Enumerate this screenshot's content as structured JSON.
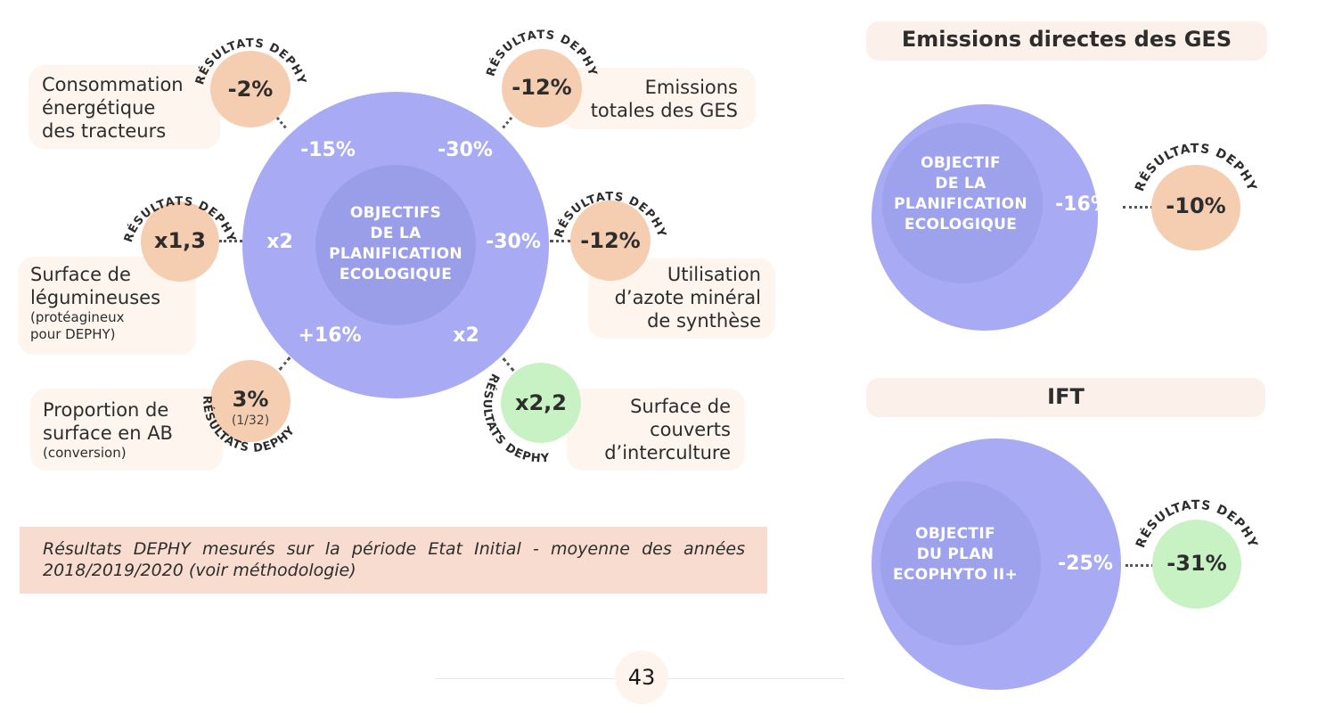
{
  "colors": {
    "objective_circle": "#a8abf4",
    "objective_inner": "#9a9ee8",
    "dephy_orange": "#f5cdb0",
    "dephy_green": "#c8f2c4",
    "label_box": "#fdf5ee",
    "note_bg": "#f7dccf"
  },
  "main_diagram": {
    "center_label": [
      "OBJECTIFS",
      "DE LA",
      "PLANIFICATION",
      "ECOLOGIQUE"
    ],
    "dephy_arc_label": "RÉSULTATS DEPHY",
    "indicators": {
      "tracteurs": {
        "objective": "-15%",
        "dephy": "-2%",
        "label": [
          "Consommation",
          "énergétique",
          "des tracteurs"
        ]
      },
      "ges": {
        "objective": "-30%",
        "dephy": "-12%",
        "label": [
          "Emissions",
          "totales des GES"
        ]
      },
      "legumineuses": {
        "objective": "x2",
        "dephy": "x1,3",
        "label": [
          "Surface de",
          "légumineuses"
        ],
        "sublabel": [
          "(protéagineux",
          "pour DEPHY)"
        ]
      },
      "azote": {
        "objective": "-30%",
        "dephy": "-12%",
        "label": [
          "Utilisation",
          "d’azote minéral",
          "de synthèse"
        ]
      },
      "ab": {
        "objective": "+16%",
        "dephy": "3%",
        "dephy_sub": "(1/32)",
        "label": [
          "Proportion de",
          "surface en AB"
        ],
        "sublabel": [
          "(conversion)"
        ]
      },
      "interculture": {
        "objective": "x2",
        "dephy": "x2,2",
        "label": [
          "Surface de",
          "couverts",
          "d’interculture"
        ]
      }
    }
  },
  "note": "Résultats DEPHY mesurés sur la période Etat Initial - moyenne des années 2018/2019/2020 (voir méthodologie)",
  "ges_panel": {
    "title": "Emissions directes des GES",
    "objective_label": [
      "OBJECTIF",
      "DE LA",
      "PLANIFICATION",
      "ECOLOGIQUE"
    ],
    "objective": "-16%",
    "dephy": "-10%",
    "dephy_arc_label": "RÉSULTATS DEPHY"
  },
  "ift_panel": {
    "title": "IFT",
    "objective_label": [
      "OBJECTIF",
      "DU PLAN",
      "ECOPHYTO II+"
    ],
    "objective": "-25%",
    "dephy": "-31%",
    "dephy_arc_label": "RÉSULTATS DEPHY"
  },
  "page_number": "43"
}
